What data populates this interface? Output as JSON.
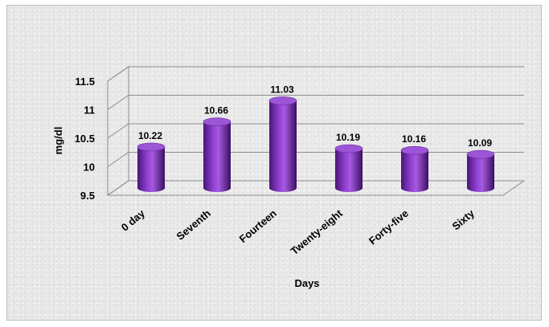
{
  "chart_data": {
    "type": "bar",
    "style": "3d-cylinder",
    "categories": [
      "0 day",
      "Seventh",
      "Fourteen",
      "Twenty-eight",
      "Forty-five",
      "Sixty"
    ],
    "values": [
      10.22,
      10.66,
      11.03,
      10.19,
      10.16,
      10.09
    ],
    "data_labels": [
      "10.22",
      "10.66",
      "11.03",
      "10.19",
      "10.16",
      "10.09"
    ],
    "xlabel": "Days",
    "ylabel": "mg/dl",
    "ylim": [
      9.5,
      11.5
    ],
    "yticks": [
      "9.5",
      "10",
      "10.5",
      "11",
      "11.5"
    ],
    "ytick_values": [
      9.5,
      10,
      10.5,
      11,
      11.5
    ],
    "grid": true,
    "legend": "none",
    "bar_color": "#7a2fb0"
  }
}
